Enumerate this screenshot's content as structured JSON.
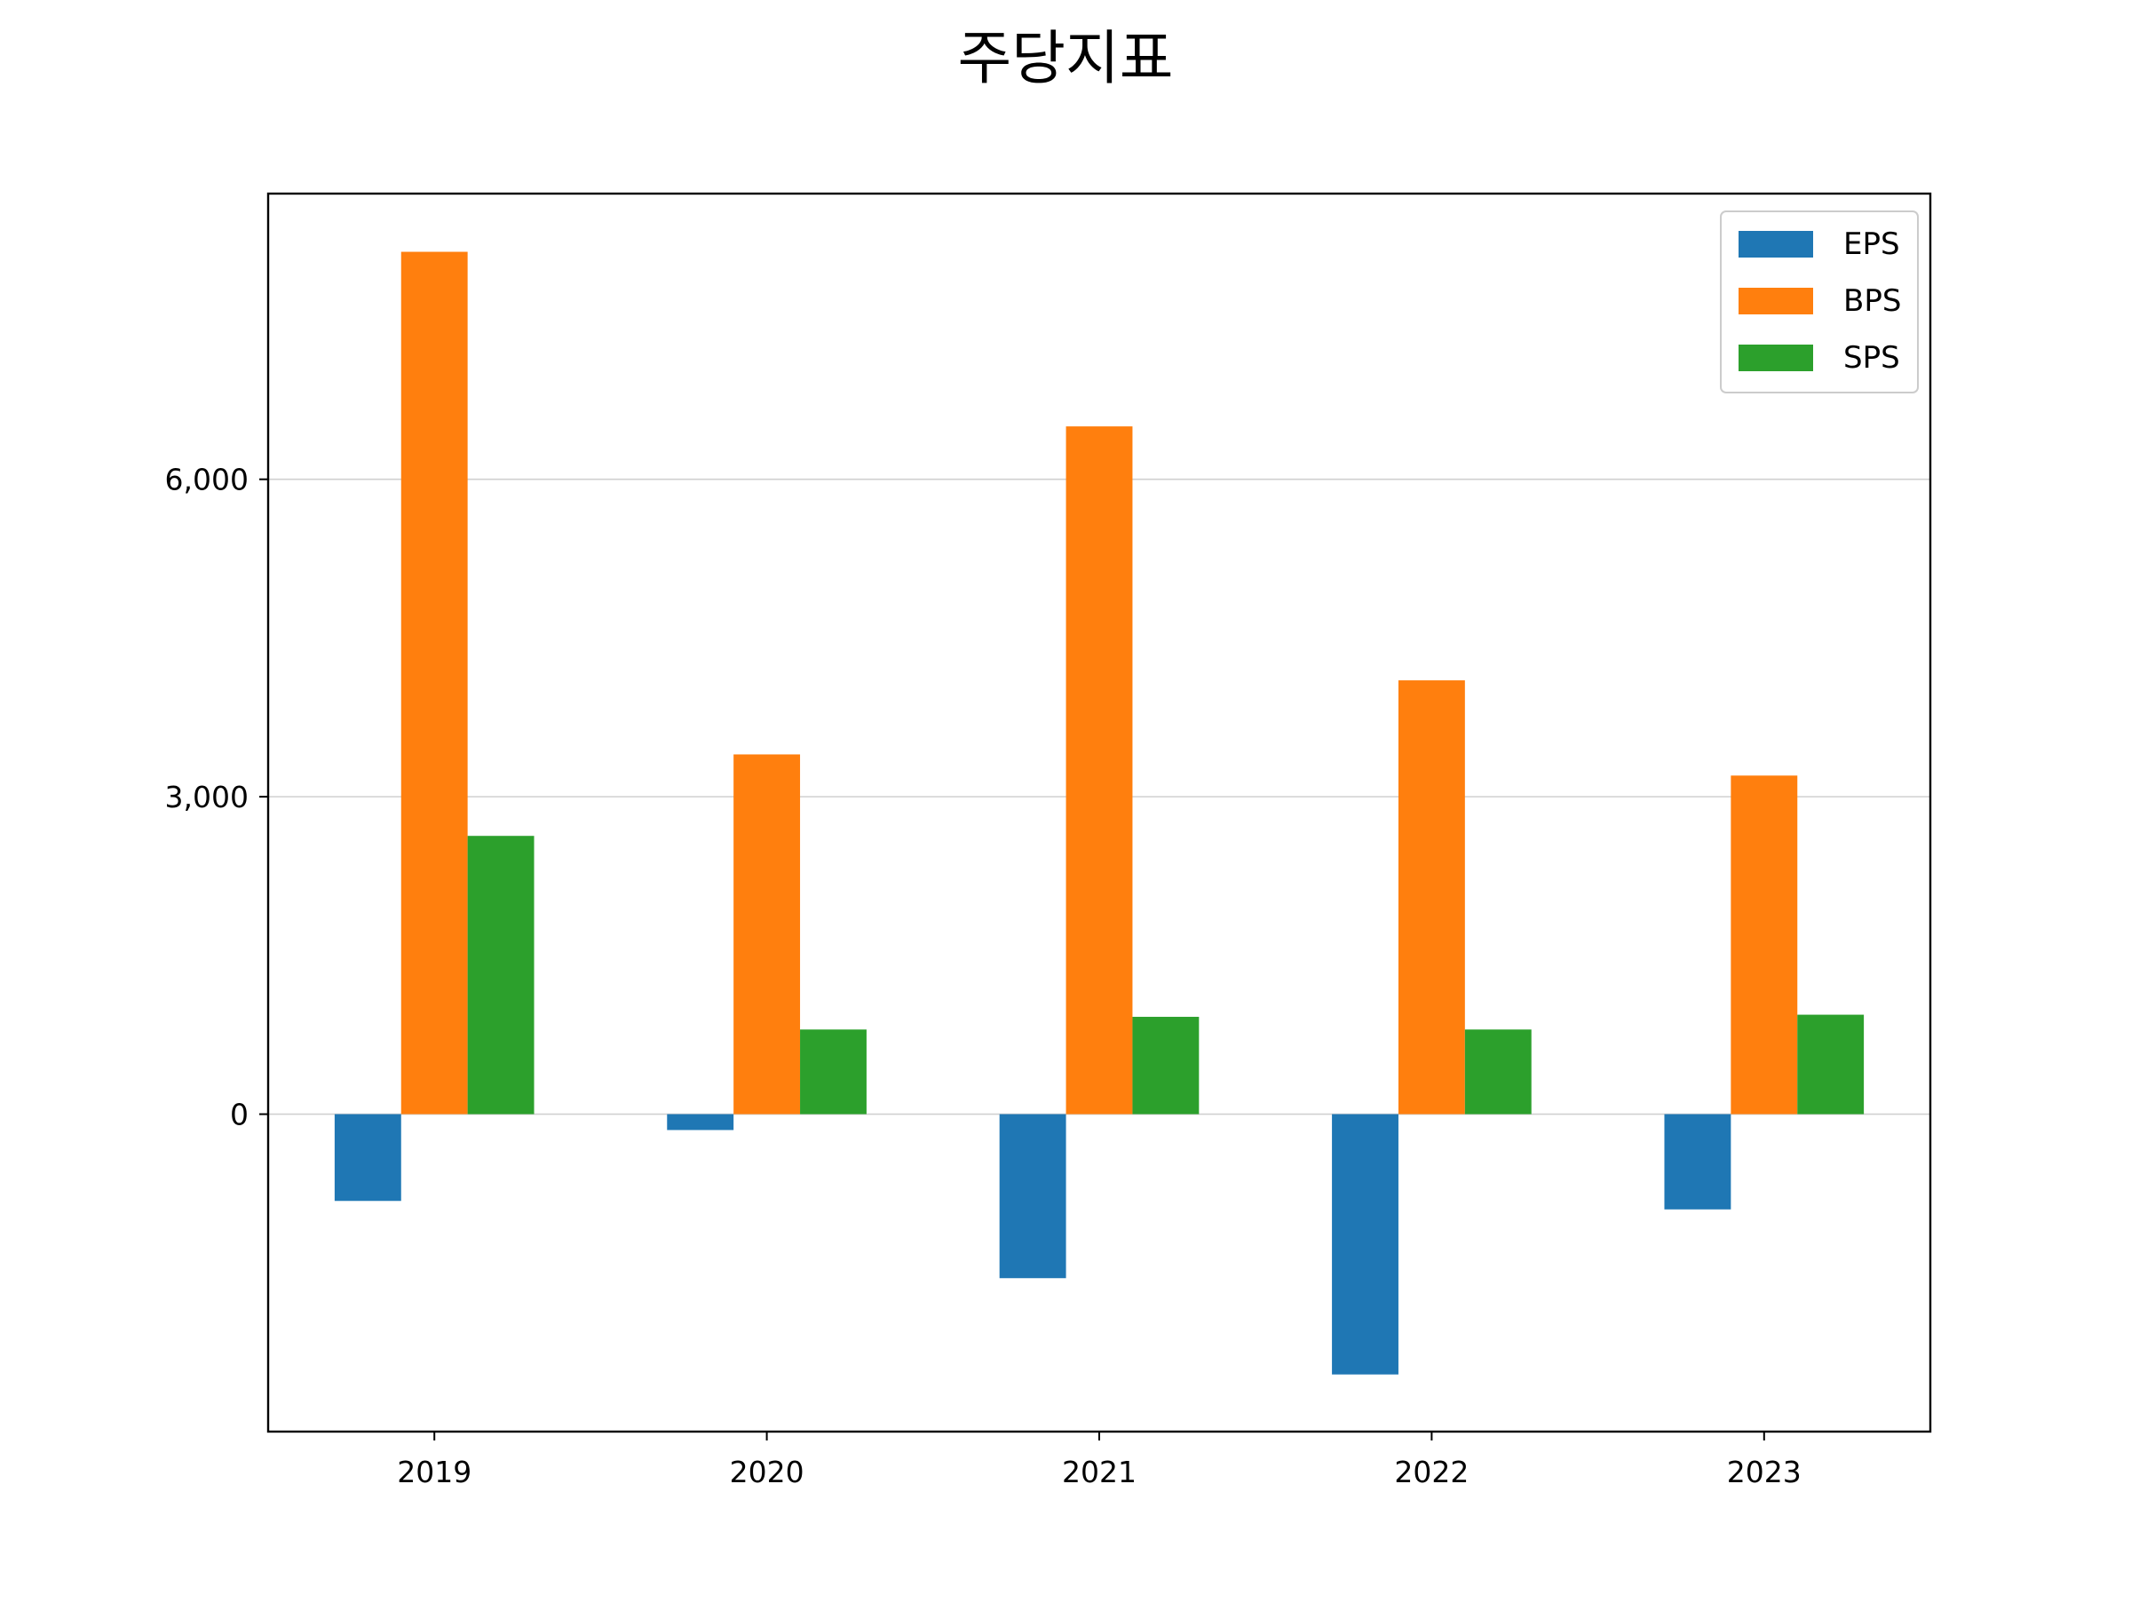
{
  "chart_data": {
    "type": "bar",
    "title": "주당지표",
    "xlabel": "",
    "ylabel": "",
    "categories": [
      "2019",
      "2020",
      "2021",
      "2022",
      "2023"
    ],
    "series": [
      {
        "name": "EPS",
        "color": "#1f77b4",
        "values": [
          -820,
          -150,
          -1550,
          -2460,
          -900
        ]
      },
      {
        "name": "BPS",
        "color": "#ff7f0e",
        "values": [
          8150,
          3400,
          6500,
          4100,
          3200
        ]
      },
      {
        "name": "SPS",
        "color": "#2ca02c",
        "values": [
          2630,
          800,
          920,
          800,
          940
        ]
      }
    ],
    "ylim": [
      -3000,
      8700
    ],
    "yticks": [
      0,
      3000,
      6000
    ],
    "ytick_labels": [
      "0",
      "3,000",
      "6,000"
    ],
    "grid": "y",
    "legend_position": "top-right"
  }
}
